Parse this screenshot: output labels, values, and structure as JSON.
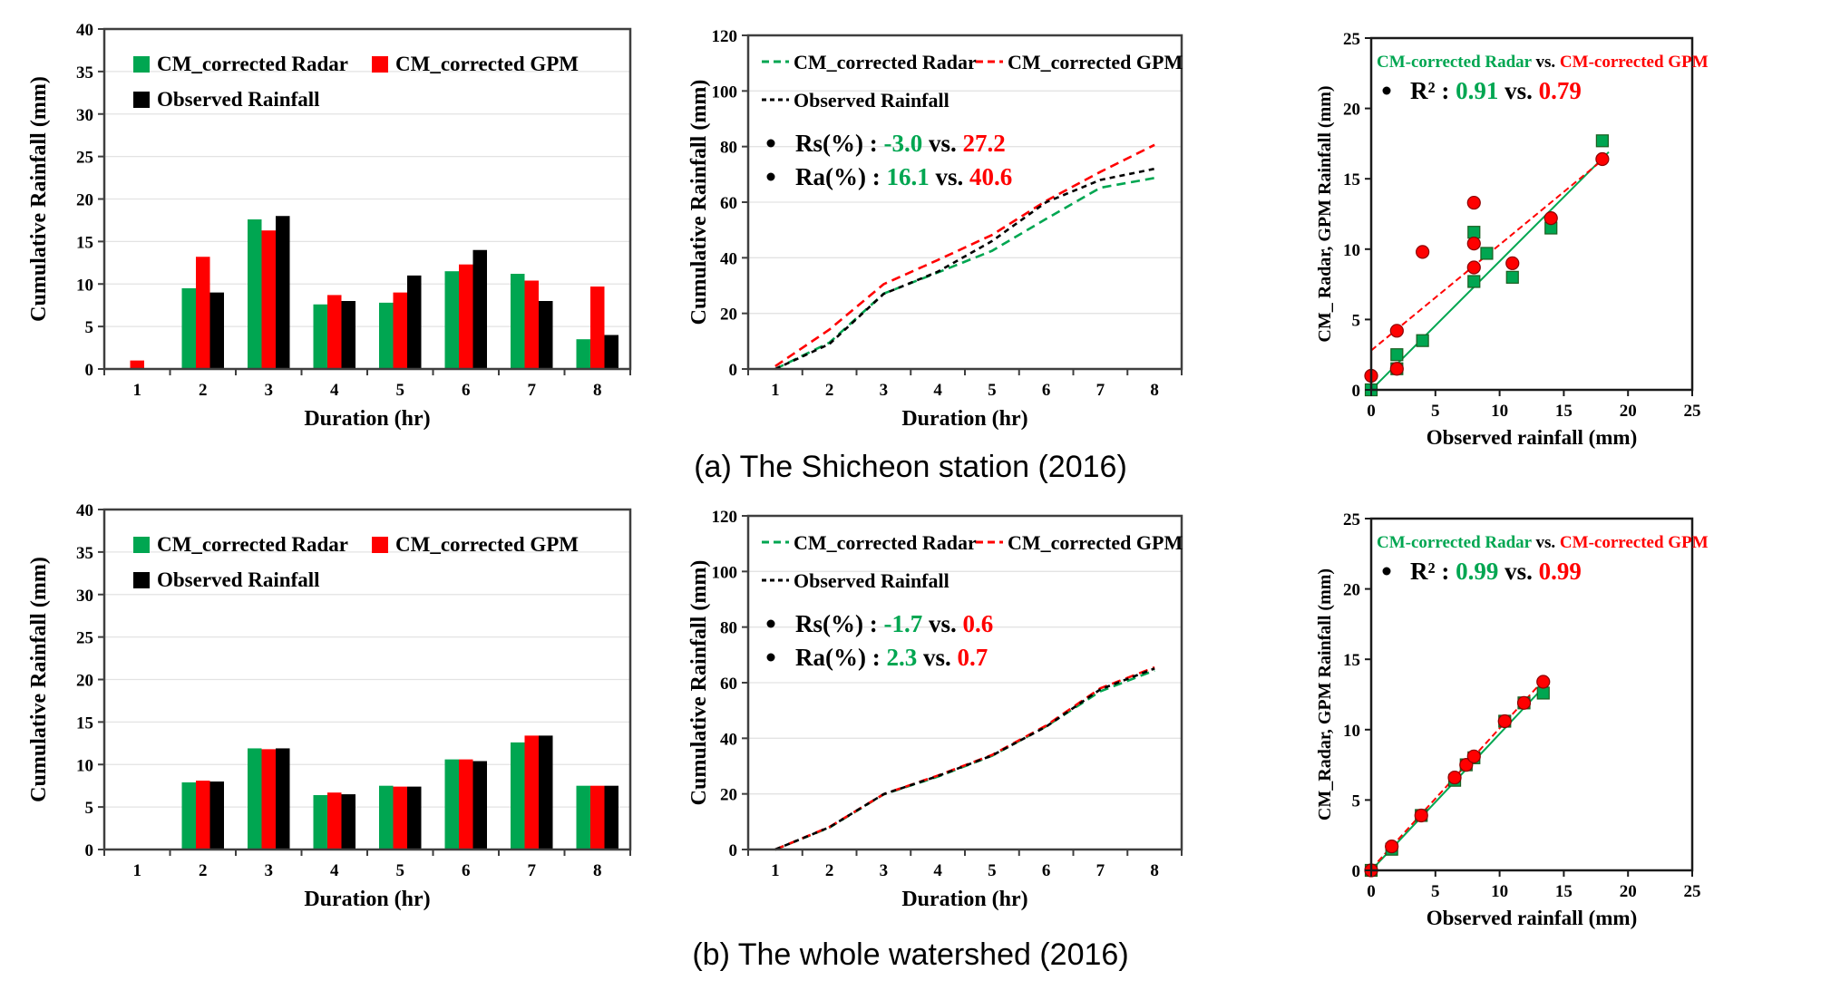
{
  "colors": {
    "radar_green": "#00A651",
    "gpm_red": "#FF0000",
    "observed_black": "#000000",
    "grid": "#E3E3E3",
    "frame": "#3F3F3F"
  },
  "captions": {
    "a": "(a) The Shicheon station (2016)",
    "b": "(b) The whole watershed (2016)"
  },
  "chart_data": [
    {
      "panel": "a-left",
      "type": "bar",
      "xlabel": "Duration (hr)",
      "ylabel": "Cumulative Rainfall (mm)",
      "categories": [
        "1",
        "2",
        "3",
        "4",
        "5",
        "6",
        "7",
        "8"
      ],
      "ylim": [
        0,
        40
      ],
      "yticks": [
        0,
        5,
        10,
        15,
        20,
        25,
        30,
        35,
        40
      ],
      "series": [
        {
          "name": "CM_corrected Radar",
          "color": "#00A651",
          "values": [
            0,
            9.5,
            17.6,
            7.6,
            7.8,
            11.5,
            11.2,
            3.5
          ]
        },
        {
          "name": "CM_corrected GPM",
          "color": "#FF0000",
          "values": [
            1.0,
            13.2,
            16.3,
            8.7,
            9.0,
            12.3,
            10.4,
            9.7
          ]
        },
        {
          "name": "Observed Rainfall",
          "color": "#000000",
          "values": [
            0,
            9.0,
            18.0,
            8.0,
            11.0,
            14.0,
            8.0,
            4.0
          ]
        }
      ]
    },
    {
      "panel": "a-middle",
      "type": "line",
      "xlabel": "Duration (hr)",
      "ylabel": "Cumulative Rainfall (mm)",
      "categories": [
        "1",
        "2",
        "3",
        "4",
        "5",
        "6",
        "7",
        "8"
      ],
      "ylim": [
        0,
        120
      ],
      "yticks": [
        0,
        20,
        40,
        60,
        80,
        100,
        120
      ],
      "series": [
        {
          "name": "CM_corrected Radar",
          "color": "#00A651",
          "values": [
            0,
            9.5,
            27.1,
            34.7,
            42.5,
            54.0,
            65.2,
            68.7
          ]
        },
        {
          "name": "CM_corrected GPM",
          "color": "#FF0000",
          "values": [
            1.0,
            14.2,
            30.5,
            39.2,
            48.2,
            60.5,
            70.9,
            80.6
          ]
        },
        {
          "name": "Observed Rainfall",
          "color": "#000000",
          "values": [
            0,
            9.0,
            27.0,
            35.0,
            46.0,
            60.0,
            68.0,
            72.0
          ]
        }
      ],
      "stats": [
        {
          "label": "Rs(%) : ",
          "radar": "-3.0",
          "vs": " vs. ",
          "gpm": "27.2"
        },
        {
          "label": "Ra(%) : ",
          "radar": "16.1",
          "vs": " vs. ",
          "gpm": "40.6"
        }
      ]
    },
    {
      "panel": "a-right",
      "type": "scatter",
      "title": {
        "radar": "CM-corrected Radar",
        "vs": " vs. ",
        "gpm": "CM-corrected GPM"
      },
      "r2": {
        "label": "R² :  ",
        "radar": "0.91",
        "vs": " vs. ",
        "gpm": "0.79"
      },
      "xlabel": "Observed rainfall (mm)",
      "ylabel": "CM_ Radar, GPM Rainfall (mm)",
      "xlim": [
        0,
        25
      ],
      "ylim": [
        0,
        25
      ],
      "xticks": [
        0,
        5,
        10,
        15,
        20,
        25
      ],
      "yticks": [
        0,
        5,
        10,
        15,
        20,
        25
      ],
      "series": [
        {
          "name": "CM-corrected Radar",
          "marker": "square",
          "color": "#00A651",
          "points": [
            [
              0,
              0
            ],
            [
              2,
              1.5
            ],
            [
              2,
              2.5
            ],
            [
              4,
              3.5
            ],
            [
              8,
              7.7
            ],
            [
              8,
              11.2
            ],
            [
              9,
              9.7
            ],
            [
              11,
              8.0
            ],
            [
              14,
              11.5
            ],
            [
              18,
              17.7
            ]
          ],
          "trend": [
            [
              0,
              0
            ],
            [
              18.5,
              16.9
            ]
          ]
        },
        {
          "name": "CM-corrected GPM",
          "marker": "circle",
          "color": "#FF0000",
          "points": [
            [
              0,
              1.0
            ],
            [
              2,
              1.5
            ],
            [
              2,
              4.2
            ],
            [
              4,
              9.8
            ],
            [
              8,
              8.7
            ],
            [
              8,
              10.4
            ],
            [
              8,
              13.3
            ],
            [
              11,
              9.0
            ],
            [
              14,
              12.2
            ],
            [
              18,
              16.4
            ]
          ],
          "trend": [
            [
              0,
              2.8
            ],
            [
              18.5,
              16.7
            ]
          ]
        }
      ]
    },
    {
      "panel": "b-left",
      "type": "bar",
      "xlabel": "Duration (hr)",
      "ylabel": "Cumulative Rainfall (mm)",
      "categories": [
        "1",
        "2",
        "3",
        "4",
        "5",
        "6",
        "7",
        "8"
      ],
      "ylim": [
        0,
        40
      ],
      "yticks": [
        0,
        5,
        10,
        15,
        20,
        25,
        30,
        35,
        40
      ],
      "series": [
        {
          "name": "CM_corrected Radar",
          "color": "#00A651",
          "values": [
            0,
            7.9,
            11.9,
            6.4,
            7.5,
            10.6,
            12.6,
            7.5
          ]
        },
        {
          "name": "CM_corrected GPM",
          "color": "#FF0000",
          "values": [
            0,
            8.1,
            11.8,
            6.7,
            7.4,
            10.6,
            13.4,
            7.5
          ]
        },
        {
          "name": "Observed Rainfall",
          "color": "#000000",
          "values": [
            0,
            8.0,
            11.9,
            6.5,
            7.4,
            10.4,
            13.4,
            7.5
          ]
        }
      ]
    },
    {
      "panel": "b-middle",
      "type": "line",
      "xlabel": "Duration (hr)",
      "ylabel": "Cumulative Rainfall (mm)",
      "categories": [
        "1",
        "2",
        "3",
        "4",
        "5",
        "6",
        "7",
        "8"
      ],
      "ylim": [
        0,
        120
      ],
      "yticks": [
        0,
        20,
        40,
        60,
        80,
        100,
        120
      ],
      "series": [
        {
          "name": "CM_corrected Radar",
          "color": "#00A651",
          "values": [
            0,
            7.9,
            19.8,
            26.2,
            33.7,
            44.3,
            56.9,
            64.4
          ]
        },
        {
          "name": "CM_corrected GPM",
          "color": "#FF0000",
          "values": [
            0,
            8.1,
            19.9,
            26.6,
            34.0,
            44.6,
            58.0,
            65.5
          ]
        },
        {
          "name": "Observed Rainfall",
          "color": "#000000",
          "values": [
            0,
            8.0,
            19.9,
            26.4,
            33.8,
            44.2,
            57.6,
            65.1
          ]
        }
      ],
      "stats": [
        {
          "label": "Rs(%) : ",
          "radar": "-1.7",
          "vs": " vs. ",
          "gpm": "0.6"
        },
        {
          "label": "Ra(%) : ",
          "radar": "2.3",
          "vs": " vs. ",
          "gpm": "0.7"
        }
      ]
    },
    {
      "panel": "b-right",
      "type": "scatter",
      "title": {
        "radar": "CM-corrected Radar",
        "vs": " vs. ",
        "gpm": "CM-corrected GPM"
      },
      "r2": {
        "label": "R² :  ",
        "radar": "0.99",
        "vs": " vs. ",
        "gpm": "0.99"
      },
      "xlabel": "Observed rainfall (mm)",
      "ylabel": "CM_Radar, GPM Rainfall (mm)",
      "xlim": [
        0,
        25
      ],
      "ylim": [
        0,
        25
      ],
      "xticks": [
        0,
        5,
        10,
        15,
        20,
        25
      ],
      "yticks": [
        0,
        5,
        10,
        15,
        20,
        25
      ],
      "series": [
        {
          "name": "CM-corrected Radar",
          "marker": "square",
          "color": "#00A651",
          "points": [
            [
              0,
              0
            ],
            [
              1.6,
              1.5
            ],
            [
              3.9,
              3.9
            ],
            [
              6.5,
              6.4
            ],
            [
              7.4,
              7.5
            ],
            [
              8.0,
              8.0
            ],
            [
              10.4,
              10.6
            ],
            [
              11.9,
              11.9
            ],
            [
              13.4,
              12.6
            ]
          ],
          "trend": [
            [
              0,
              0
            ],
            [
              13.4,
              13.0
            ]
          ]
        },
        {
          "name": "CM-corrected GPM",
          "marker": "circle",
          "color": "#FF0000",
          "points": [
            [
              0,
              0
            ],
            [
              1.6,
              1.7
            ],
            [
              3.9,
              3.9
            ],
            [
              6.5,
              6.6
            ],
            [
              7.4,
              7.5
            ],
            [
              8.0,
              8.1
            ],
            [
              10.4,
              10.6
            ],
            [
              11.9,
              11.9
            ],
            [
              13.4,
              13.4
            ]
          ],
          "trend": [
            [
              0,
              0.1
            ],
            [
              13.4,
              13.5
            ]
          ]
        }
      ]
    }
  ]
}
